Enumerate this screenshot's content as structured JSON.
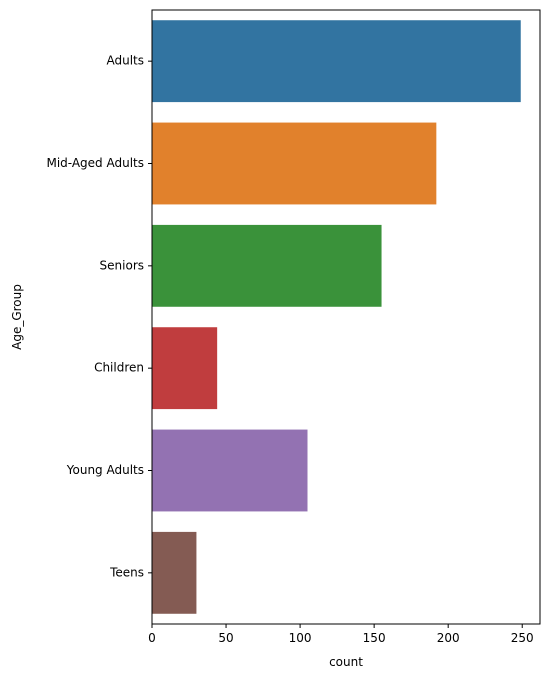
{
  "chart_data": {
    "type": "bar",
    "orientation": "horizontal",
    "categories": [
      "Adults",
      "Mid-Aged Adults",
      "Seniors",
      "Children",
      "Young Adults",
      "Teens"
    ],
    "values": [
      249,
      192,
      155,
      44,
      105,
      30
    ],
    "colors": [
      "#3274a1",
      "#e1812c",
      "#3a923a",
      "#c03d3e",
      "#9372b2",
      "#845b53"
    ],
    "title": "",
    "xlabel": "count",
    "ylabel": "Age_Group",
    "xlim": [
      0,
      262
    ],
    "xticks": [
      0,
      50,
      100,
      150,
      200,
      250
    ],
    "grid": false,
    "legend": "none"
  }
}
